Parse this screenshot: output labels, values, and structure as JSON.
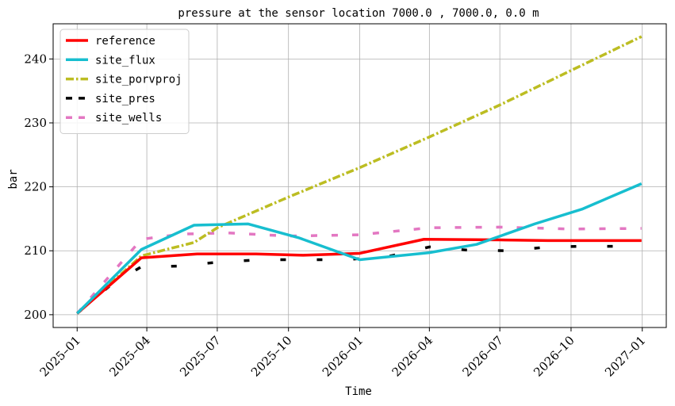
{
  "chart_data": {
    "type": "line",
    "title": "pressure at the sensor location 7000.0 , 7000.0, 0.0 m",
    "xlabel": "Time",
    "ylabel": "bar",
    "x_ticks": [
      "2025–01",
      "2025–04",
      "2025–07",
      "2025–10",
      "2026–01",
      "2026–04",
      "2026–07",
      "2026–10",
      "2027–01"
    ],
    "x_range": [
      "2024-12-01",
      "2027-02-01"
    ],
    "y_ticks": [
      "200",
      "210",
      "220",
      "230",
      "240"
    ],
    "ylim": [
      198,
      245.5
    ],
    "grid": true,
    "legend_position": "top-left",
    "series": [
      {
        "name": "reference",
        "color": "#ff0000",
        "style": "solid",
        "points": [
          [
            "2025-01-01",
            200.2
          ],
          [
            "2025-03-25",
            208.9
          ],
          [
            "2025-06-05",
            209.5
          ],
          [
            "2025-08-20",
            209.5
          ],
          [
            "2025-10-20",
            209.3
          ],
          [
            "2026-01-01",
            209.6
          ],
          [
            "2026-03-25",
            211.8
          ],
          [
            "2026-07-01",
            211.7
          ],
          [
            "2026-09-01",
            211.6
          ],
          [
            "2026-12-31",
            211.6
          ]
        ]
      },
      {
        "name": "site_flux",
        "color": "#17becf",
        "style": "solid",
        "points": [
          [
            "2025-01-01",
            200.2
          ],
          [
            "2025-03-25",
            210.2
          ],
          [
            "2025-06-01",
            214.0
          ],
          [
            "2025-08-10",
            214.2
          ],
          [
            "2025-10-15",
            212.0
          ],
          [
            "2026-01-01",
            208.6
          ],
          [
            "2026-04-01",
            209.7
          ],
          [
            "2026-06-01",
            211.0
          ],
          [
            "2026-08-15",
            214.2
          ],
          [
            "2026-10-15",
            216.5
          ],
          [
            "2026-12-31",
            220.5
          ]
        ]
      },
      {
        "name": "site_porvproj",
        "color": "#bcbd22",
        "style": "dashdot",
        "points": [
          [
            "2025-01-01",
            200.2
          ],
          [
            "2025-03-25",
            209.2
          ],
          [
            "2025-06-01",
            211.3
          ],
          [
            "2025-07-01",
            213.6
          ],
          [
            "2025-10-01",
            218.4
          ],
          [
            "2026-01-01",
            223.0
          ],
          [
            "2026-04-01",
            227.8
          ],
          [
            "2026-07-01",
            232.8
          ],
          [
            "2026-10-01",
            238.2
          ],
          [
            "2026-12-31",
            243.5
          ]
        ]
      },
      {
        "name": "site_pres",
        "color": "#000000",
        "style": "dashed",
        "points": [
          [
            "2025-01-01",
            200.2
          ],
          [
            "2025-02-15",
            204.8
          ],
          [
            "2025-03-25",
            207.5
          ],
          [
            "2025-05-10",
            207.6
          ],
          [
            "2025-07-01",
            208.2
          ],
          [
            "2025-08-25",
            208.6
          ],
          [
            "2025-10-20",
            208.6
          ],
          [
            "2025-12-15",
            208.6
          ],
          [
            "2026-02-10",
            209.2
          ],
          [
            "2026-04-01",
            210.6
          ],
          [
            "2026-05-20",
            210.1
          ],
          [
            "2026-07-15",
            210.0
          ],
          [
            "2026-09-01",
            210.6
          ],
          [
            "2026-10-15",
            210.7
          ],
          [
            "2026-12-01",
            210.7
          ]
        ]
      },
      {
        "name": "site_wells",
        "color": "#e377c2",
        "style": "dashed",
        "points": [
          [
            "2025-01-01",
            200.2
          ],
          [
            "2025-03-25",
            211.8
          ],
          [
            "2025-05-15",
            212.6
          ],
          [
            "2025-07-15",
            212.8
          ],
          [
            "2025-10-01",
            212.3
          ],
          [
            "2026-01-01",
            212.5
          ],
          [
            "2026-04-01",
            213.6
          ],
          [
            "2026-07-01",
            213.7
          ],
          [
            "2026-10-01",
            213.4
          ],
          [
            "2026-12-31",
            213.5
          ]
        ]
      }
    ]
  }
}
